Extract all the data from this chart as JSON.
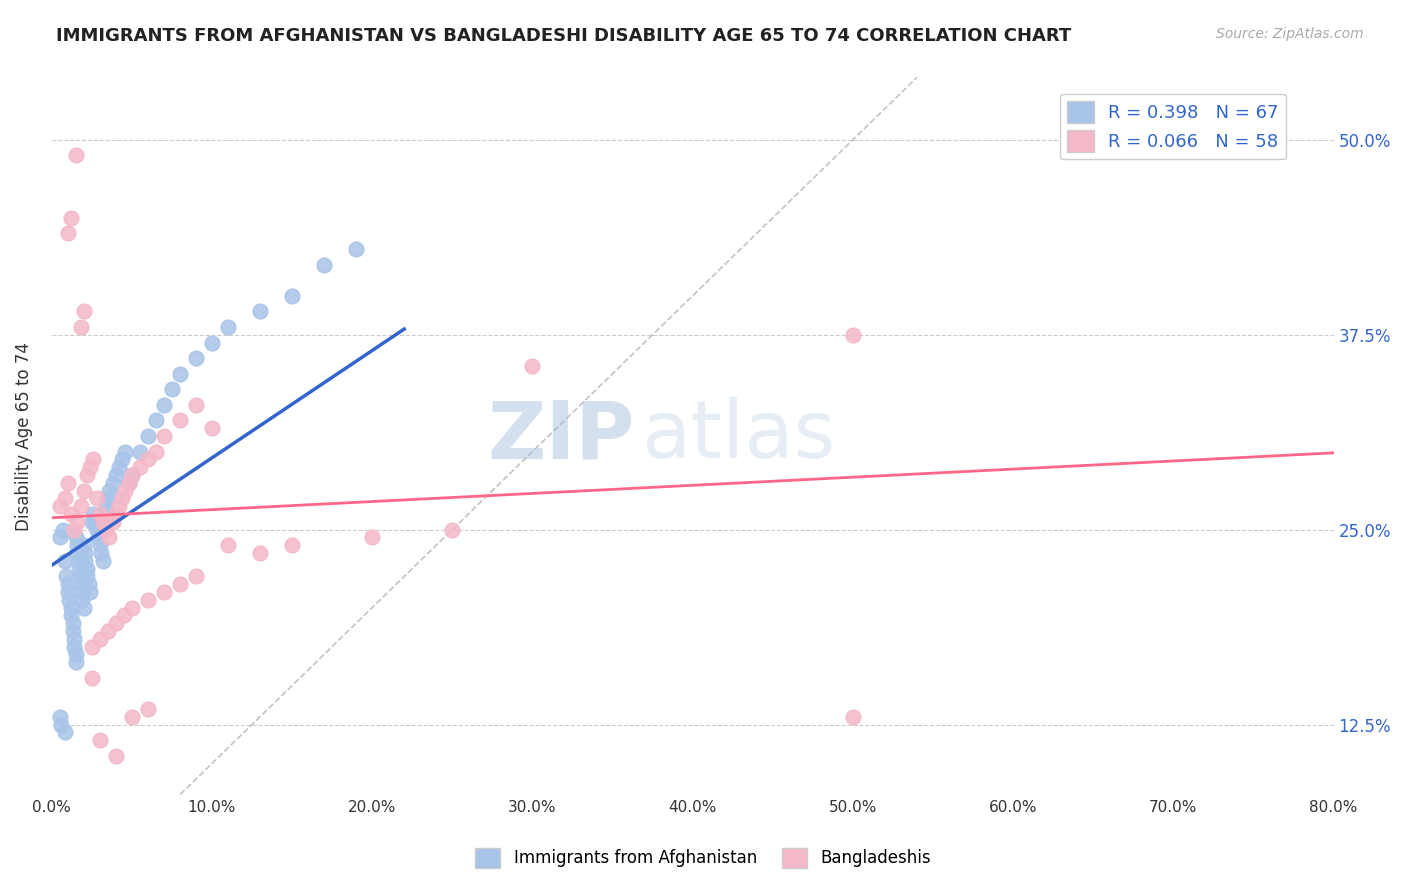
{
  "title": "IMMIGRANTS FROM AFGHANISTAN VS BANGLADESHI DISABILITY AGE 65 TO 74 CORRELATION CHART",
  "source": "Source: ZipAtlas.com",
  "ylabel": "Disability Age 65 to 74",
  "legend_labels": [
    "Immigrants from Afghanistan",
    "Bangladeshis"
  ],
  "R_blue": 0.398,
  "N_blue": 67,
  "R_pink": 0.066,
  "N_pink": 58,
  "blue_color": "#a8c4e8",
  "pink_color": "#f4b8c8",
  "blue_line_color": "#3366cc",
  "pink_line_color": "#ff6688",
  "watermark_zip": "ZIP",
  "watermark_atlas": "atlas",
  "xlim": [
    0.0,
    0.8
  ],
  "ylim": [
    0.08,
    0.54
  ],
  "xticks": [
    0.0,
    0.1,
    0.2,
    0.3,
    0.4,
    0.5,
    0.6,
    0.7,
    0.8
  ],
  "yticks": [
    0.125,
    0.25,
    0.375,
    0.5
  ],
  "ytick_labels": [
    "12.5%",
    "25.0%",
    "37.5%",
    "50.0%"
  ],
  "xtick_labels": [
    "0.0%",
    "10.0%",
    "20.0%",
    "30.0%",
    "40.0%",
    "50.0%",
    "60.0%",
    "70.0%",
    "80.0%"
  ],
  "blue_x": [
    0.005,
    0.007,
    0.008,
    0.009,
    0.01,
    0.01,
    0.011,
    0.012,
    0.012,
    0.013,
    0.013,
    0.014,
    0.014,
    0.015,
    0.015,
    0.015,
    0.016,
    0.016,
    0.017,
    0.017,
    0.018,
    0.018,
    0.019,
    0.019,
    0.02,
    0.02,
    0.021,
    0.021,
    0.022,
    0.022,
    0.023,
    0.024,
    0.025,
    0.026,
    0.027,
    0.028,
    0.029,
    0.03,
    0.031,
    0.032,
    0.033,
    0.034,
    0.035,
    0.036,
    0.038,
    0.04,
    0.042,
    0.044,
    0.046,
    0.048,
    0.05,
    0.055,
    0.06,
    0.065,
    0.07,
    0.075,
    0.08,
    0.09,
    0.1,
    0.11,
    0.13,
    0.15,
    0.17,
    0.19,
    0.005,
    0.006,
    0.008
  ],
  "blue_y": [
    0.245,
    0.25,
    0.23,
    0.22,
    0.215,
    0.21,
    0.205,
    0.2,
    0.195,
    0.19,
    0.185,
    0.18,
    0.175,
    0.17,
    0.165,
    0.245,
    0.24,
    0.235,
    0.23,
    0.225,
    0.22,
    0.215,
    0.21,
    0.205,
    0.2,
    0.24,
    0.235,
    0.23,
    0.225,
    0.22,
    0.215,
    0.21,
    0.255,
    0.26,
    0.255,
    0.25,
    0.245,
    0.24,
    0.235,
    0.23,
    0.26,
    0.265,
    0.27,
    0.275,
    0.28,
    0.285,
    0.29,
    0.295,
    0.3,
    0.28,
    0.285,
    0.3,
    0.31,
    0.32,
    0.33,
    0.34,
    0.35,
    0.36,
    0.37,
    0.38,
    0.39,
    0.4,
    0.42,
    0.43,
    0.13,
    0.125,
    0.12
  ],
  "pink_x": [
    0.005,
    0.008,
    0.01,
    0.012,
    0.014,
    0.016,
    0.018,
    0.02,
    0.022,
    0.024,
    0.026,
    0.028,
    0.03,
    0.032,
    0.034,
    0.036,
    0.038,
    0.04,
    0.042,
    0.044,
    0.046,
    0.048,
    0.05,
    0.055,
    0.06,
    0.065,
    0.07,
    0.08,
    0.09,
    0.1,
    0.11,
    0.13,
    0.15,
    0.2,
    0.25,
    0.3,
    0.5,
    0.01,
    0.012,
    0.015,
    0.018,
    0.02,
    0.025,
    0.03,
    0.035,
    0.04,
    0.045,
    0.05,
    0.06,
    0.07,
    0.08,
    0.09,
    0.025,
    0.03,
    0.04,
    0.05,
    0.06,
    0.5
  ],
  "pink_y": [
    0.265,
    0.27,
    0.28,
    0.26,
    0.25,
    0.255,
    0.265,
    0.275,
    0.285,
    0.29,
    0.295,
    0.27,
    0.26,
    0.255,
    0.25,
    0.245,
    0.255,
    0.26,
    0.265,
    0.27,
    0.275,
    0.28,
    0.285,
    0.29,
    0.295,
    0.3,
    0.31,
    0.32,
    0.33,
    0.315,
    0.24,
    0.235,
    0.24,
    0.245,
    0.25,
    0.355,
    0.375,
    0.44,
    0.45,
    0.49,
    0.38,
    0.39,
    0.175,
    0.18,
    0.185,
    0.19,
    0.195,
    0.2,
    0.205,
    0.21,
    0.215,
    0.22,
    0.155,
    0.115,
    0.105,
    0.13,
    0.135,
    0.13
  ]
}
